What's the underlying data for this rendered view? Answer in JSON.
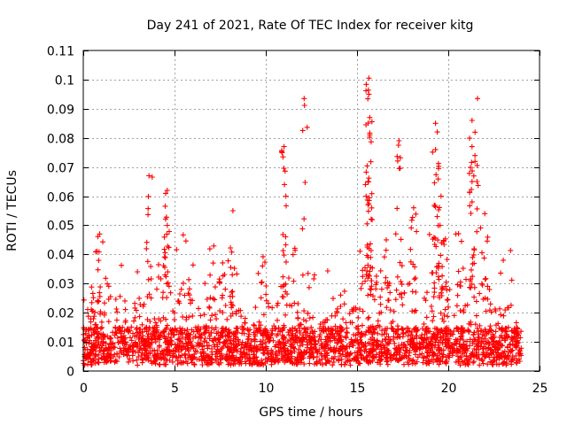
{
  "chart_data": {
    "type": "scatter",
    "title": "Day 241 of 2021, Rate Of TEC Index for receiver kitg",
    "xlabel": "GPS time / hours",
    "ylabel": "ROTI / TECUs",
    "xlim": [
      0,
      25
    ],
    "ylim": [
      0,
      0.11
    ],
    "xticks": [
      0,
      5,
      10,
      15,
      20,
      25
    ],
    "xtick_labels": [
      "0",
      "5",
      "10",
      "15",
      "20",
      "25"
    ],
    "yticks": [
      0,
      0.01,
      0.02,
      0.03,
      0.04,
      0.05,
      0.06,
      0.07,
      0.08,
      0.09,
      0.1,
      0.11
    ],
    "ytick_labels": [
      "0",
      "0.01",
      "0.02",
      "0.03",
      "0.04",
      "0.05",
      "0.06",
      "0.07",
      "0.08",
      "0.09",
      "0.1",
      "0.11"
    ],
    "grid": true,
    "marker": "+",
    "color": "#ff0000",
    "time_range_hours": [
      0,
      24
    ],
    "density_envelope": {
      "x": [
        0,
        0.5,
        1,
        1.5,
        2,
        2.5,
        3,
        3.5,
        4,
        4.5,
        5,
        5.5,
        6,
        6.5,
        7,
        7.5,
        8,
        8.5,
        9,
        9.5,
        10,
        10.5,
        11,
        11.5,
        12,
        12.5,
        13,
        13.5,
        14,
        14.5,
        15,
        15.5,
        16,
        16.5,
        17,
        17.5,
        18,
        18.5,
        19,
        19.5,
        20,
        20.5,
        21,
        21.5,
        22,
        22.5,
        23,
        23.5,
        24
      ],
      "upper": [
        0.018,
        0.03,
        0.024,
        0.026,
        0.02,
        0.022,
        0.026,
        0.022,
        0.02,
        0.03,
        0.024,
        0.032,
        0.024,
        0.022,
        0.028,
        0.032,
        0.026,
        0.024,
        0.02,
        0.022,
        0.024,
        0.026,
        0.03,
        0.028,
        0.024,
        0.022,
        0.02,
        0.022,
        0.024,
        0.026,
        0.028,
        0.036,
        0.034,
        0.03,
        0.028,
        0.032,
        0.03,
        0.028,
        0.034,
        0.036,
        0.03,
        0.032,
        0.03,
        0.028,
        0.026,
        0.022,
        0.02,
        0.026,
        0.015
      ]
    },
    "notable_points": [
      {
        "x": 0.9,
        "y": 0.047
      },
      {
        "x": 3.6,
        "y": 0.067
      },
      {
        "x": 4.6,
        "y": 0.062
      },
      {
        "x": 11.0,
        "y": 0.077
      },
      {
        "x": 12.1,
        "y": 0.0935
      },
      {
        "x": 15.65,
        "y": 0.1005
      },
      {
        "x": 15.65,
        "y": 0.095
      },
      {
        "x": 15.7,
        "y": 0.087
      },
      {
        "x": 15.7,
        "y": 0.081
      },
      {
        "x": 17.3,
        "y": 0.079
      },
      {
        "x": 19.3,
        "y": 0.085
      },
      {
        "x": 19.4,
        "y": 0.082
      },
      {
        "x": 19.3,
        "y": 0.076
      },
      {
        "x": 21.3,
        "y": 0.086
      },
      {
        "x": 21.3,
        "y": 0.077
      },
      {
        "x": 21.3,
        "y": 0.065
      },
      {
        "x": 21.6,
        "y": 0.0935
      },
      {
        "x": 22.0,
        "y": 0.054
      },
      {
        "x": 15.6,
        "y": 0.065
      },
      {
        "x": 16.6,
        "y": 0.045
      },
      {
        "x": 8.2,
        "y": 0.055
      },
      {
        "x": 18.1,
        "y": 0.056
      },
      {
        "x": 19.6,
        "y": 0.06
      },
      {
        "x": 4.6,
        "y": 0.05
      },
      {
        "x": 11.1,
        "y": 0.06
      }
    ]
  }
}
